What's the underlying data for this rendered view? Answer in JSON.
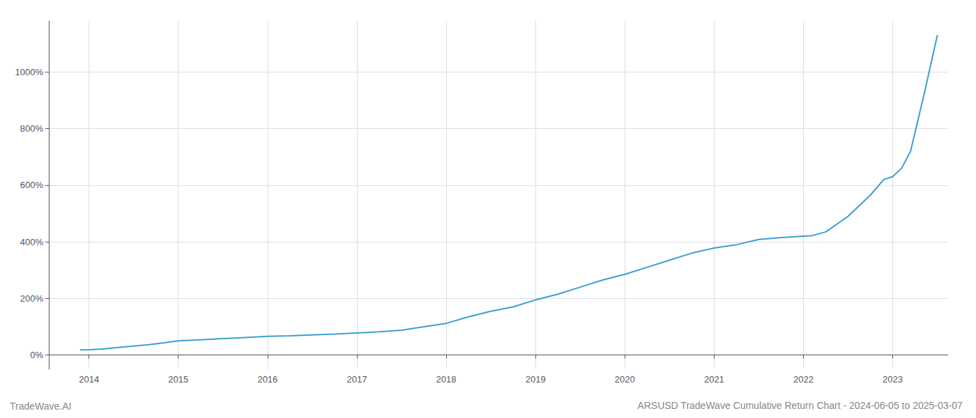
{
  "chart_data": {
    "type": "line",
    "title": "ARSUSD TradeWave Cumulative Return Chart - 2024-06-05 to 2025-03-07",
    "annotations": [
      "TradeWave.AI"
    ],
    "color": "#3a9fd4",
    "grid": true,
    "x": [
      2013.9,
      2014.0,
      2014.17,
      2014.33,
      2014.5,
      2014.67,
      2014.83,
      2015.0,
      2015.25,
      2015.5,
      2015.75,
      2016.0,
      2016.25,
      2016.5,
      2016.75,
      2017.0,
      2017.25,
      2017.5,
      2017.75,
      2018.0,
      2018.25,
      2018.5,
      2018.75,
      2019.0,
      2019.25,
      2019.5,
      2019.75,
      2020.0,
      2020.25,
      2020.5,
      2020.75,
      2021.0,
      2021.25,
      2021.5,
      2021.75,
      2022.0,
      2022.1,
      2022.25,
      2022.5,
      2022.75,
      2022.9,
      2023.0,
      2023.1,
      2023.2,
      2023.35,
      2023.5
    ],
    "values": [
      18,
      19,
      22,
      27,
      32,
      37,
      43,
      50,
      54,
      58,
      62,
      66,
      68,
      71,
      74,
      78,
      82,
      88,
      100,
      112,
      135,
      155,
      170,
      195,
      215,
      240,
      265,
      285,
      310,
      335,
      360,
      378,
      390,
      408,
      415,
      420,
      422,
      435,
      490,
      565,
      620,
      630,
      660,
      720,
      920,
      1130
    ],
    "xlim": [
      2013.55,
      2023.62
    ],
    "xticks": [
      2014,
      2015,
      2016,
      2017,
      2018,
      2019,
      2020,
      2021,
      2022,
      2023
    ],
    "ylim": [
      -50,
      1180
    ],
    "yticks": [
      {
        "value": 0,
        "label": "0%"
      },
      {
        "value": 200,
        "label": "200%"
      },
      {
        "value": 400,
        "label": "400%"
      },
      {
        "value": 600,
        "label": "600%"
      },
      {
        "value": 800,
        "label": "800%"
      },
      {
        "value": 1000,
        "label": "1000%"
      }
    ]
  }
}
